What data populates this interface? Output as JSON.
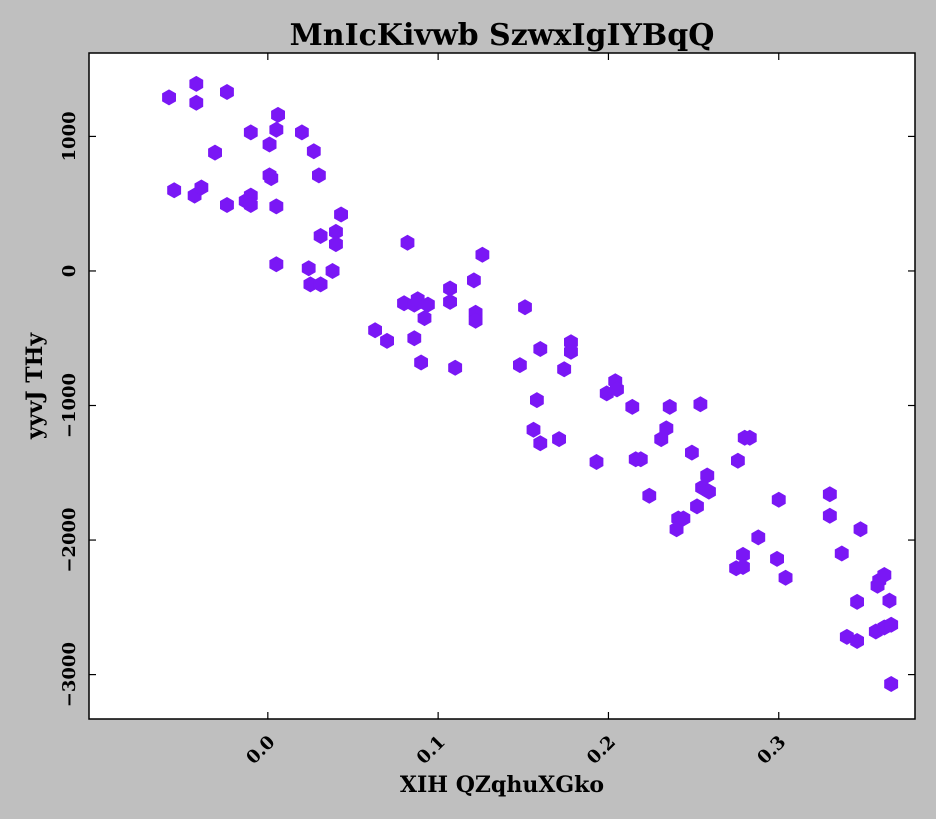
{
  "chart_data": {
    "type": "scatter",
    "title": "MnIcKivwb  SzwxIgIYBqQ",
    "xlabel": "XIH QZqhuXGko",
    "ylabel": "yyvJ THy",
    "xlim": [
      -0.105,
      0.38
    ],
    "ylim": [
      -3330,
      1620
    ],
    "xticks": [
      0.0,
      0.1,
      0.2,
      0.3
    ],
    "xtick_labels": [
      "0.0",
      "0.1",
      "0.2",
      "0.3"
    ],
    "yticks": [
      1000,
      0,
      -1000,
      -2000,
      -3000
    ],
    "ytick_labels": [
      "1000",
      "0",
      "−1000",
      "−2000",
      "−3000"
    ],
    "grid": false,
    "marker": "hexagon",
    "series": [
      {
        "color": "#7a17f5",
        "points": [
          [
            -0.058,
            1290
          ],
          [
            -0.042,
            1390
          ],
          [
            -0.042,
            1250
          ],
          [
            -0.024,
            1330
          ],
          [
            -0.031,
            880
          ],
          [
            -0.055,
            600
          ],
          [
            -0.043,
            560
          ],
          [
            -0.039,
            620
          ],
          [
            -0.024,
            490
          ],
          [
            -0.01,
            1030
          ],
          [
            0.001,
            940
          ],
          [
            0.005,
            1050
          ],
          [
            0.006,
            1160
          ],
          [
            0.02,
            1030
          ],
          [
            0.027,
            890
          ],
          [
            -0.013,
            520
          ],
          [
            -0.01,
            560
          ],
          [
            -0.01,
            490
          ],
          [
            0.001,
            710
          ],
          [
            0.002,
            690
          ],
          [
            0.005,
            480
          ],
          [
            0.03,
            710
          ],
          [
            0.043,
            420
          ],
          [
            0.031,
            260
          ],
          [
            0.04,
            290
          ],
          [
            0.04,
            200
          ],
          [
            0.005,
            50
          ],
          [
            0.024,
            20
          ],
          [
            0.038,
            0
          ],
          [
            0.025,
            -100
          ],
          [
            0.031,
            -100
          ],
          [
            0.082,
            210
          ],
          [
            0.063,
            -440
          ],
          [
            0.07,
            -520
          ],
          [
            0.08,
            -240
          ],
          [
            0.086,
            -250
          ],
          [
            0.088,
            -210
          ],
          [
            0.094,
            -250
          ],
          [
            0.092,
            -350
          ],
          [
            0.086,
            -500
          ],
          [
            0.09,
            -680
          ],
          [
            0.107,
            -130
          ],
          [
            0.107,
            -230
          ],
          [
            0.11,
            -720
          ],
          [
            0.121,
            -70
          ],
          [
            0.126,
            120
          ],
          [
            0.122,
            -310
          ],
          [
            0.122,
            -370
          ],
          [
            0.151,
            -270
          ],
          [
            0.148,
            -700
          ],
          [
            0.16,
            -580
          ],
          [
            0.158,
            -960
          ],
          [
            0.156,
            -1180
          ],
          [
            0.16,
            -1280
          ],
          [
            0.171,
            -1250
          ],
          [
            0.174,
            -730
          ],
          [
            0.178,
            -530
          ],
          [
            0.178,
            -600
          ],
          [
            0.193,
            -1420
          ],
          [
            0.199,
            -910
          ],
          [
            0.204,
            -820
          ],
          [
            0.205,
            -880
          ],
          [
            0.214,
            -1010
          ],
          [
            0.216,
            -1400
          ],
          [
            0.219,
            -1400
          ],
          [
            0.224,
            -1670
          ],
          [
            0.231,
            -1250
          ],
          [
            0.234,
            -1170
          ],
          [
            0.236,
            -1010
          ],
          [
            0.241,
            -1840
          ],
          [
            0.24,
            -1920
          ],
          [
            0.244,
            -1840
          ],
          [
            0.249,
            -1350
          ],
          [
            0.252,
            -1750
          ],
          [
            0.254,
            -990
          ],
          [
            0.255,
            -1610
          ],
          [
            0.258,
            -1520
          ],
          [
            0.259,
            -1640
          ],
          [
            0.275,
            -2210
          ],
          [
            0.276,
            -1410
          ],
          [
            0.279,
            -2110
          ],
          [
            0.279,
            -2200
          ],
          [
            0.28,
            -1240
          ],
          [
            0.283,
            -1240
          ],
          [
            0.288,
            -1980
          ],
          [
            0.299,
            -2140
          ],
          [
            0.3,
            -1700
          ],
          [
            0.304,
            -2280
          ],
          [
            0.33,
            -1660
          ],
          [
            0.33,
            -1820
          ],
          [
            0.337,
            -2100
          ],
          [
            0.34,
            -2720
          ],
          [
            0.346,
            -2750
          ],
          [
            0.346,
            -2460
          ],
          [
            0.348,
            -1920
          ],
          [
            0.357,
            -2680
          ],
          [
            0.358,
            -2340
          ],
          [
            0.359,
            -2300
          ],
          [
            0.362,
            -2260
          ],
          [
            0.362,
            -2650
          ],
          [
            0.365,
            -2450
          ],
          [
            0.366,
            -2630
          ],
          [
            0.366,
            -3070
          ]
        ]
      }
    ]
  }
}
